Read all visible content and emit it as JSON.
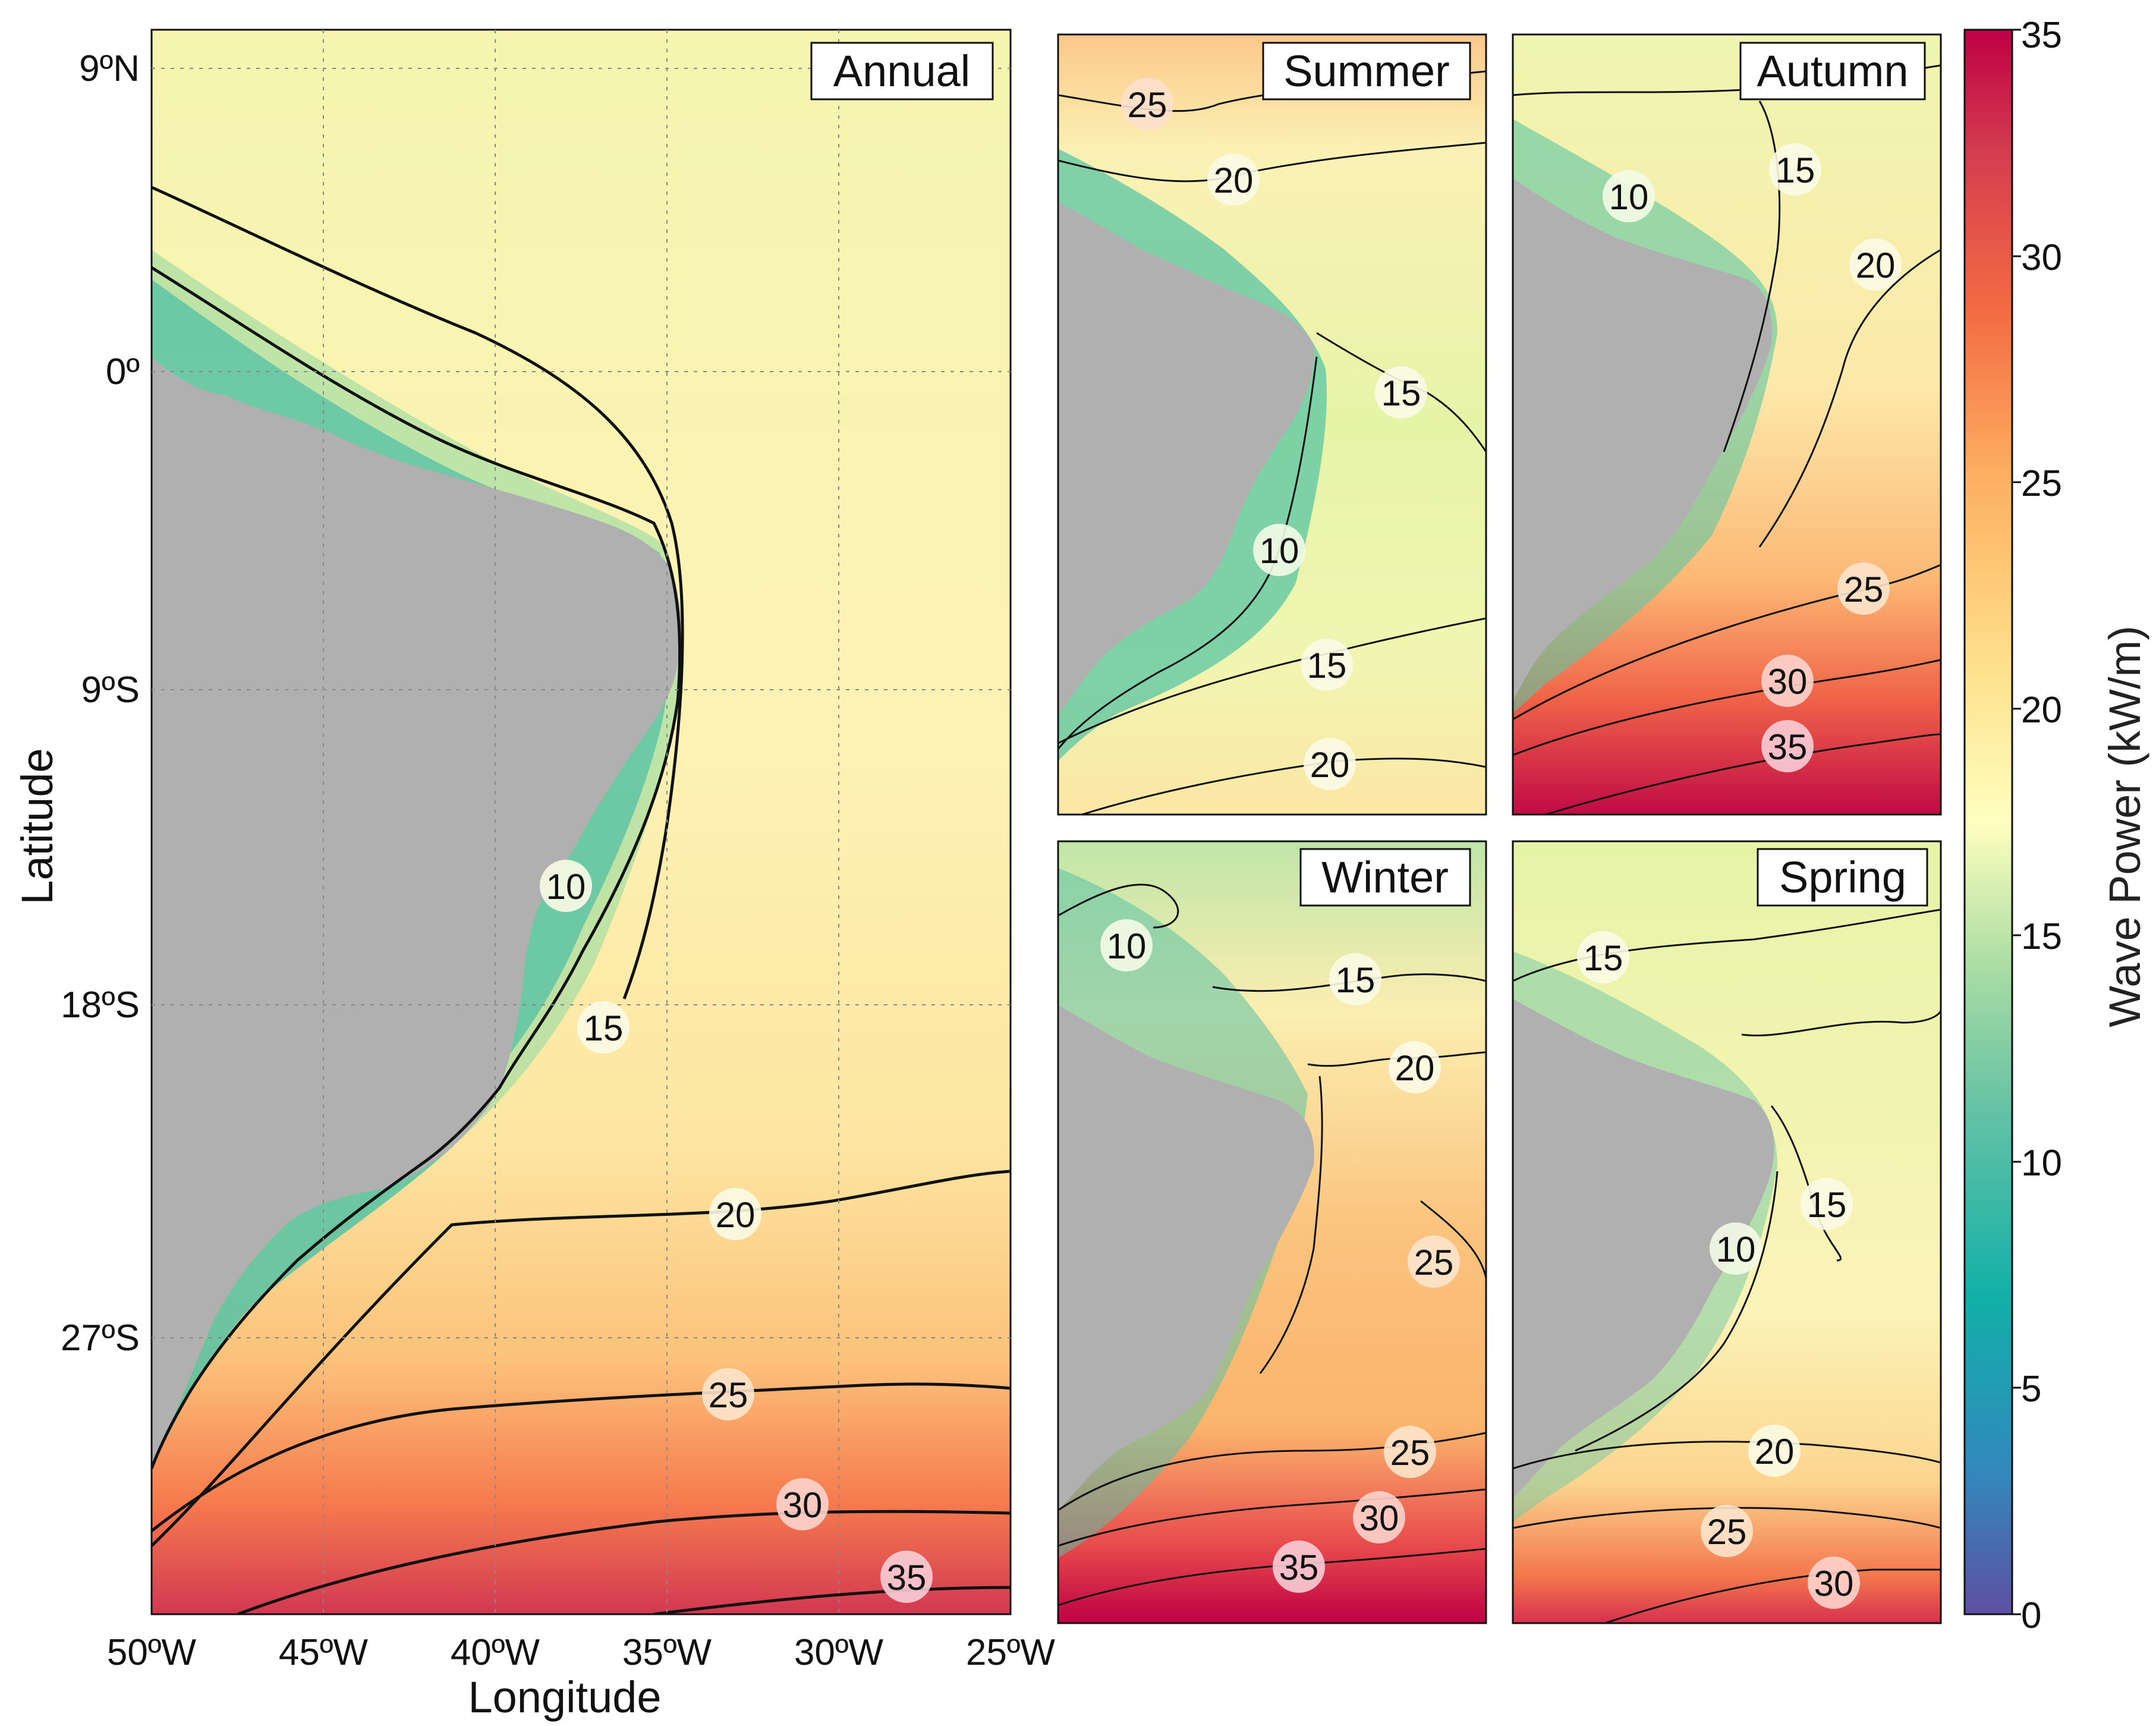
{
  "figure": {
    "axes": {
      "xlabel": "Longitude",
      "ylabel": "Latitude",
      "x_ticks": [
        "50ºW",
        "45ºW",
        "40ºW",
        "35ºW",
        "30ºW",
        "25ºW"
      ],
      "y_ticks": [
        "9ºN",
        "0º",
        "9ºS",
        "18ºS",
        "27ºS"
      ]
    },
    "colorbar": {
      "label": "Wave Power (kW/m)",
      "min": 0,
      "max": 35,
      "ticks": [
        "0",
        "5",
        "10",
        "15",
        "20",
        "25",
        "30",
        "35"
      ],
      "colormap": [
        "#5e4fa2",
        "#3288bd",
        "#12b0a8",
        "#66c2a5",
        "#abdda4",
        "#e6f598",
        "#ffffbf",
        "#fee08b",
        "#fdae61",
        "#f46d43",
        "#d53e4f",
        "#be0045"
      ]
    },
    "land_color": "#b0b0b0",
    "panels": [
      {
        "id": "annual",
        "label": "Annual",
        "contour_labels": [
          "10",
          "15",
          "20",
          "25",
          "30",
          "35"
        ]
      },
      {
        "id": "summer",
        "label": "Summer",
        "contour_labels": [
          "25",
          "20",
          "15",
          "10",
          "15",
          "20"
        ]
      },
      {
        "id": "autumn",
        "label": "Autumn",
        "contour_labels": [
          "10",
          "15",
          "20",
          "25",
          "30",
          "35"
        ]
      },
      {
        "id": "winter",
        "label": "Winter",
        "contour_labels": [
          "10",
          "15",
          "20",
          "25",
          "25",
          "30",
          "35"
        ]
      },
      {
        "id": "spring",
        "label": "Spring",
        "contour_labels": [
          "15",
          "15",
          "10",
          "20",
          "25",
          "30"
        ]
      }
    ]
  }
}
